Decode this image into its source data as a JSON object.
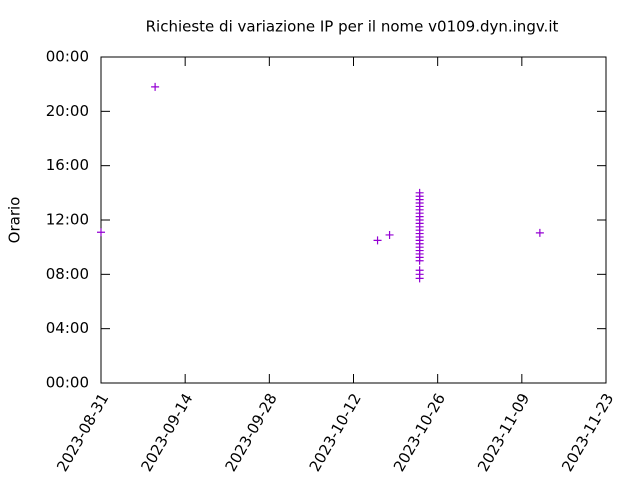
{
  "chart_data": {
    "type": "scatter",
    "title": "Richieste di variazione IP per il nome v0109.dyn.ingv.it",
    "y_label": "Orario",
    "series": [
      {
        "color": "#9400d3",
        "x": [
          "2023-08-31",
          "2023-09-09",
          "2023-10-16",
          "2023-10-18",
          "2023-10-23",
          "2023-10-23",
          "2023-10-23",
          "2023-10-23",
          "2023-10-23",
          "2023-10-23",
          "2023-10-23",
          "2023-10-23",
          "2023-10-23",
          "2023-10-23",
          "2023-10-23",
          "2023-10-23",
          "2023-10-23",
          "2023-10-23",
          "2023-10-23",
          "2023-10-23",
          "2023-10-23",
          "2023-10-23",
          "2023-10-23",
          "2023-10-23",
          "2023-10-23",
          "2023-10-23",
          "2023-10-23",
          "2023-10-23",
          "2023-11-12"
        ],
        "values": [
          11.1,
          21.8,
          10.5,
          10.9,
          7.7,
          8.0,
          8.3,
          9.0,
          9.25,
          9.5,
          9.75,
          10.0,
          10.25,
          10.5,
          10.75,
          11.0,
          11.25,
          11.5,
          11.75,
          12.0,
          12.25,
          12.5,
          12.75,
          13.0,
          13.25,
          13.5,
          13.75,
          14.0,
          11.05
        ]
      }
    ],
    "xlim": [
      "2023-08-31",
      "2023-11-23"
    ],
    "xticks": [
      "2023-08-31",
      "2023-09-14",
      "2023-09-28",
      "2023-10-12",
      "2023-10-26",
      "2023-11-09",
      "2023-11-23"
    ],
    "ylim": [
      0,
      24
    ],
    "yticks": [
      {
        "value": 0,
        "label": "00:00"
      },
      {
        "value": 4,
        "label": "04:00"
      },
      {
        "value": 8,
        "label": "08:00"
      },
      {
        "value": 12,
        "label": "12:00"
      },
      {
        "value": 16,
        "label": "16:00"
      },
      {
        "value": 20,
        "label": "20:00"
      },
      {
        "value": 24,
        "label": "00:00"
      }
    ]
  }
}
